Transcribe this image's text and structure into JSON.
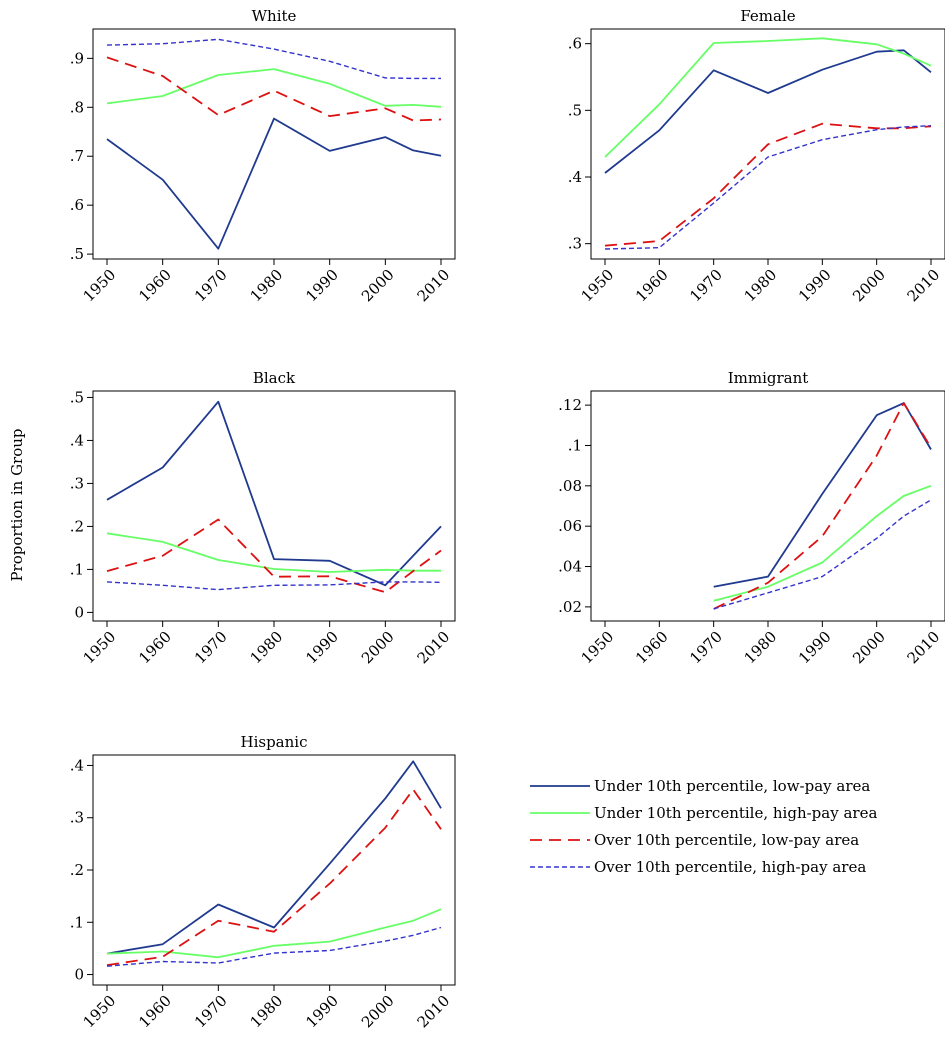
{
  "figure": {
    "ylabel": "Proportion in Group",
    "x_ticks": [
      "1950",
      "1960",
      "1970",
      "1980",
      "1990",
      "2000",
      "2010"
    ]
  },
  "legend": {
    "entries": [
      {
        "label": "Under 10th percentile, low-pay area",
        "color": "#1f3a8f",
        "style": "solid"
      },
      {
        "label": "Under 10th percentile, high-pay area",
        "color": "#66ff66",
        "style": "solid"
      },
      {
        "label": "Over 10th percentile, low-pay area",
        "color": "#dd1111",
        "style": "dashed"
      },
      {
        "label": "Over 10th percentile, high-pay area",
        "color": "#3333cc",
        "style": "dashdot"
      }
    ]
  },
  "chart_data": [
    {
      "type": "line",
      "title": "White",
      "x": [
        1950,
        1960,
        1970,
        1980,
        1990,
        2000,
        2005,
        2010
      ],
      "xlim": [
        1950,
        2010
      ],
      "ylim": [
        0.49,
        0.96
      ],
      "yticks": [
        0.5,
        0.6,
        0.7,
        0.8,
        0.9
      ],
      "ytick_labels": [
        ".5",
        ".6",
        ".7",
        ".8",
        ".9"
      ],
      "series": [
        {
          "name": "Under 10th percentile, low-pay area",
          "values": [
            0.735,
            0.652,
            0.511,
            0.777,
            0.711,
            0.739,
            0.712,
            0.701
          ]
        },
        {
          "name": "Under 10th percentile, high-pay area",
          "values": [
            0.808,
            0.823,
            0.866,
            0.878,
            0.848,
            0.803,
            0.805,
            0.801
          ]
        },
        {
          "name": "Over 10th percentile, low-pay area",
          "values": [
            0.902,
            0.864,
            0.784,
            0.834,
            0.782,
            0.798,
            0.773,
            0.775
          ]
        },
        {
          "name": "Over 10th percentile, high-pay area",
          "values": [
            0.927,
            0.93,
            0.939,
            0.919,
            0.894,
            0.86,
            0.859,
            0.859
          ]
        }
      ]
    },
    {
      "type": "line",
      "title": "Female",
      "x": [
        1950,
        1960,
        1970,
        1980,
        1990,
        2000,
        2005,
        2010
      ],
      "xlim": [
        1950,
        2010
      ],
      "ylim": [
        0.277,
        0.622
      ],
      "yticks": [
        0.3,
        0.4,
        0.5,
        0.6
      ],
      "ytick_labels": [
        ".3",
        ".4",
        ".5",
        ".6"
      ],
      "series": [
        {
          "name": "Under 10th percentile, low-pay area",
          "values": [
            0.406,
            0.47,
            0.56,
            0.526,
            0.561,
            0.588,
            0.59,
            0.557
          ]
        },
        {
          "name": "Under 10th percentile, high-pay area",
          "values": [
            0.43,
            0.509,
            0.601,
            0.604,
            0.608,
            0.599,
            0.585,
            0.567
          ]
        },
        {
          "name": "Over 10th percentile, low-pay area",
          "values": [
            0.297,
            0.304,
            0.368,
            0.449,
            0.48,
            0.473,
            0.473,
            0.476
          ]
        },
        {
          "name": "Over 10th percentile, high-pay area",
          "values": [
            0.292,
            0.294,
            0.361,
            0.43,
            0.456,
            0.471,
            0.475,
            0.477
          ]
        }
      ]
    },
    {
      "type": "line",
      "title": "Black",
      "x": [
        1950,
        1960,
        1970,
        1980,
        1990,
        2000,
        2005,
        2010
      ],
      "xlim": [
        1950,
        2010
      ],
      "ylim": [
        -0.02,
        0.515
      ],
      "yticks": [
        0,
        0.1,
        0.2,
        0.3,
        0.4,
        0.5
      ],
      "ytick_labels": [
        "0",
        ".1",
        ".2",
        ".3",
        ".4",
        ".5"
      ],
      "series": [
        {
          "name": "Under 10th percentile, low-pay area",
          "values": [
            0.262,
            0.337,
            0.49,
            0.124,
            0.12,
            0.063,
            0.132,
            0.2
          ]
        },
        {
          "name": "Under 10th percentile, high-pay area",
          "values": [
            0.184,
            0.164,
            0.122,
            0.101,
            0.094,
            0.099,
            0.097,
            0.097
          ]
        },
        {
          "name": "Over 10th percentile, low-pay area",
          "values": [
            0.096,
            0.132,
            0.216,
            0.083,
            0.084,
            0.047,
            0.096,
            0.144
          ]
        },
        {
          "name": "Over 10th percentile, high-pay area",
          "values": [
            0.071,
            0.063,
            0.053,
            0.063,
            0.064,
            0.071,
            0.071,
            0.07
          ]
        }
      ]
    },
    {
      "type": "line",
      "title": "Immigrant",
      "x": [
        1970,
        1980,
        1990,
        2000,
        2005,
        2010
      ],
      "xlim": [
        1950,
        2010
      ],
      "ylim": [
        0.013,
        0.127
      ],
      "yticks": [
        0.02,
        0.04,
        0.06,
        0.08,
        0.1,
        0.12
      ],
      "ytick_labels": [
        ".02",
        ".04",
        ".06",
        ".08",
        ".1",
        ".12"
      ],
      "series": [
        {
          "name": "Under 10th percentile, low-pay area",
          "values": [
            0.03,
            0.035,
            0.076,
            0.115,
            0.121,
            0.098
          ]
        },
        {
          "name": "Under 10th percentile, high-pay area",
          "values": [
            0.023,
            0.03,
            0.042,
            0.065,
            0.075,
            0.08
          ]
        },
        {
          "name": "Over 10th percentile, low-pay area",
          "values": [
            0.019,
            0.032,
            0.055,
            0.095,
            0.121,
            0.099
          ]
        },
        {
          "name": "Over 10th percentile, high-pay area",
          "values": [
            0.019,
            0.027,
            0.035,
            0.054,
            0.065,
            0.073
          ]
        }
      ]
    },
    {
      "type": "line",
      "title": "Hispanic",
      "x": [
        1950,
        1960,
        1970,
        1980,
        1990,
        2000,
        2005,
        2010
      ],
      "xlim": [
        1950,
        2010
      ],
      "ylim": [
        -0.02,
        0.42
      ],
      "yticks": [
        0,
        0.1,
        0.2,
        0.3,
        0.4
      ],
      "ytick_labels": [
        "0",
        ".1",
        ".2",
        ".3",
        ".4"
      ],
      "series": [
        {
          "name": "Under 10th percentile, low-pay area",
          "values": [
            0.04,
            0.058,
            0.134,
            0.09,
            0.212,
            0.337,
            0.408,
            0.318
          ]
        },
        {
          "name": "Under 10th percentile, high-pay area",
          "values": [
            0.04,
            0.044,
            0.033,
            0.055,
            0.063,
            0.09,
            0.103,
            0.125
          ]
        },
        {
          "name": "Over 10th percentile, low-pay area",
          "values": [
            0.018,
            0.034,
            0.103,
            0.082,
            0.174,
            0.281,
            0.354,
            0.278
          ]
        },
        {
          "name": "Over 10th percentile, high-pay area",
          "values": [
            0.016,
            0.025,
            0.022,
            0.041,
            0.046,
            0.064,
            0.075,
            0.09
          ]
        }
      ]
    }
  ]
}
